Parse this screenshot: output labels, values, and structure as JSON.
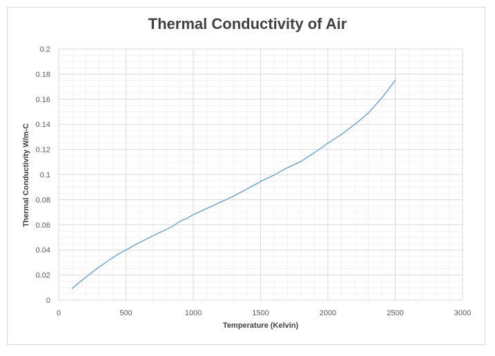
{
  "chart_data": {
    "type": "line",
    "title": "Thermal Conductivity of Air",
    "xlabel": "Temperature (Kelvin)",
    "ylabel": "Thermal Conductivity W/m-C",
    "xlim": [
      0,
      3000
    ],
    "ylim": [
      0,
      0.2
    ],
    "x_ticks": [
      "0",
      "500",
      "1000",
      "1500",
      "2000",
      "2500",
      "3000"
    ],
    "y_ticks": [
      "0",
      "0.02",
      "0.04",
      "0.06",
      "0.08",
      "0.1",
      "0.12",
      "0.14",
      "0.16",
      "0.18",
      "0.2"
    ],
    "grid": true,
    "legend": "none",
    "line_color": "#5b9bd5",
    "series": [
      {
        "x": [
          100,
          150,
          200,
          250,
          300,
          350,
          400,
          450,
          500,
          550,
          600,
          650,
          700,
          750,
          800,
          850,
          900,
          950,
          1000,
          1100,
          1200,
          1300,
          1400,
          1500,
          1600,
          1700,
          1800,
          1900,
          2000,
          2100,
          2200,
          2300,
          2400,
          2500
        ],
        "y": [
          0.0093,
          0.0138,
          0.0181,
          0.0223,
          0.0263,
          0.03,
          0.0338,
          0.0371,
          0.0399,
          0.043,
          0.0458,
          0.0485,
          0.0512,
          0.0538,
          0.0563,
          0.0591,
          0.0627,
          0.065,
          0.0681,
          0.073,
          0.0779,
          0.0829,
          0.0886,
          0.0945,
          0.0996,
          0.1055,
          0.1105,
          0.1175,
          0.125,
          0.132,
          0.14,
          0.149,
          0.161,
          0.175
        ]
      }
    ]
  }
}
